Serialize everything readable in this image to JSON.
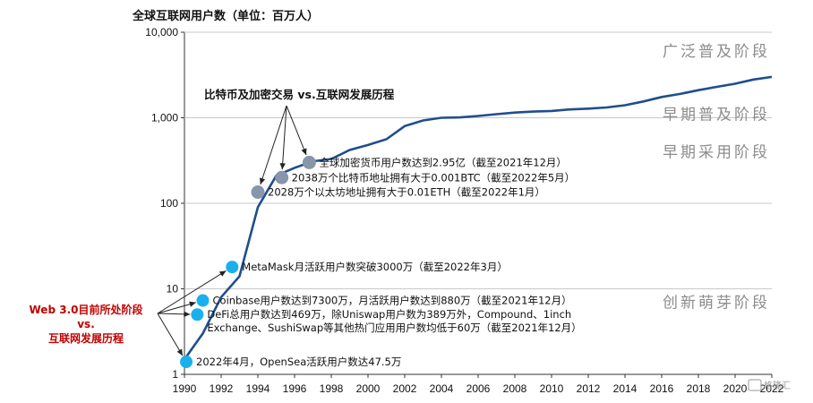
{
  "chart_data": {
    "type": "line",
    "title": "全球互联网用户数（单位：百万人）",
    "y_scale": "log",
    "xlim": [
      1990,
      2022
    ],
    "ylim": [
      1,
      10000
    ],
    "x_ticks": [
      "1990",
      "1992",
      "1994",
      "1996",
      "1998",
      "2000",
      "2002",
      "2004",
      "2006",
      "2008",
      "2010",
      "2012",
      "2014",
      "2016",
      "2018",
      "2020",
      "2022"
    ],
    "y_ticks": [
      {
        "label": "1",
        "value": 1
      },
      {
        "label": "10",
        "value": 10
      },
      {
        "label": "100",
        "value": 100
      },
      {
        "label": "1,000",
        "value": 1000
      },
      {
        "label": "10,000",
        "value": 10000
      }
    ],
    "line_color": "#1f4e8c",
    "series": [
      {
        "x": [
          1990,
          1991,
          1992,
          1993,
          1994,
          1995,
          1996,
          1997,
          1998,
          1999,
          2000,
          2001,
          2002,
          2003,
          2004,
          2005,
          2006,
          2007,
          2008,
          2009,
          2010,
          2011,
          2012,
          2013,
          2014,
          2015,
          2016,
          2017,
          2018,
          2019,
          2020,
          2021,
          2022
        ],
        "y": [
          1.5,
          3,
          8,
          14,
          90,
          210,
          260,
          310,
          330,
          420,
          480,
          560,
          800,
          930,
          1000,
          1010,
          1050,
          1100,
          1150,
          1180,
          1200,
          1250,
          1280,
          1320,
          1400,
          1550,
          1750,
          1900,
          2100,
          2300,
          2500,
          2800,
          3000
        ]
      }
    ],
    "stages": [
      {
        "label": "广泛普及阶段",
        "y": 6000
      },
      {
        "label": "早期普及阶段",
        "y": 1100
      },
      {
        "label": "早期采用阶段",
        "y": 400
      },
      {
        "label": "创新萌芽阶段",
        "y": 7
      }
    ],
    "crypto_markers": {
      "color": "#8896aa",
      "heading": "比特币及加密交易 vs.互联网发展历程",
      "points": [
        {
          "x": 1994,
          "y": 135,
          "label": "2028万个以太坊地址拥有大于0.01ETH（截至2022年1月）"
        },
        {
          "x": 1995.3,
          "y": 200,
          "label": "2038万个比特币地址拥有大于0.001BTC（截至2022年5月）"
        },
        {
          "x": 1996.8,
          "y": 300,
          "label": "全球加密货币用户数达到2.95亿（截至2021年12月）"
        }
      ]
    },
    "web3_markers": {
      "color": "#1ab0ee",
      "heading_lines": [
        "Web 3.0目前所处阶段",
        "vs.",
        "互联网发展历程"
      ],
      "points": [
        {
          "x": 1990.1,
          "y": 1.4,
          "lines": [
            "2022年4月，OpenSea活跃用户数达47.5万"
          ]
        },
        {
          "x": 1990.7,
          "y": 5,
          "lines": [
            "DeFi总用户数达到469万，除Uniswap用户数为389万外，Compound、1inch",
            "Exchange、SushiSwap等其他热门应用用户数均低于60万（截至2021年12月）"
          ]
        },
        {
          "x": 1991,
          "y": 7.3,
          "lines": [
            "Coinbase用户数达到7300万，月活跃用户数达到880万（截至2021年12月）"
          ]
        },
        {
          "x": 1992.6,
          "y": 18,
          "lines": [
            "MetaMask月活跃用户数突破3000万（截至2022年3月）"
          ]
        }
      ]
    }
  },
  "watermark": "格隆汇"
}
